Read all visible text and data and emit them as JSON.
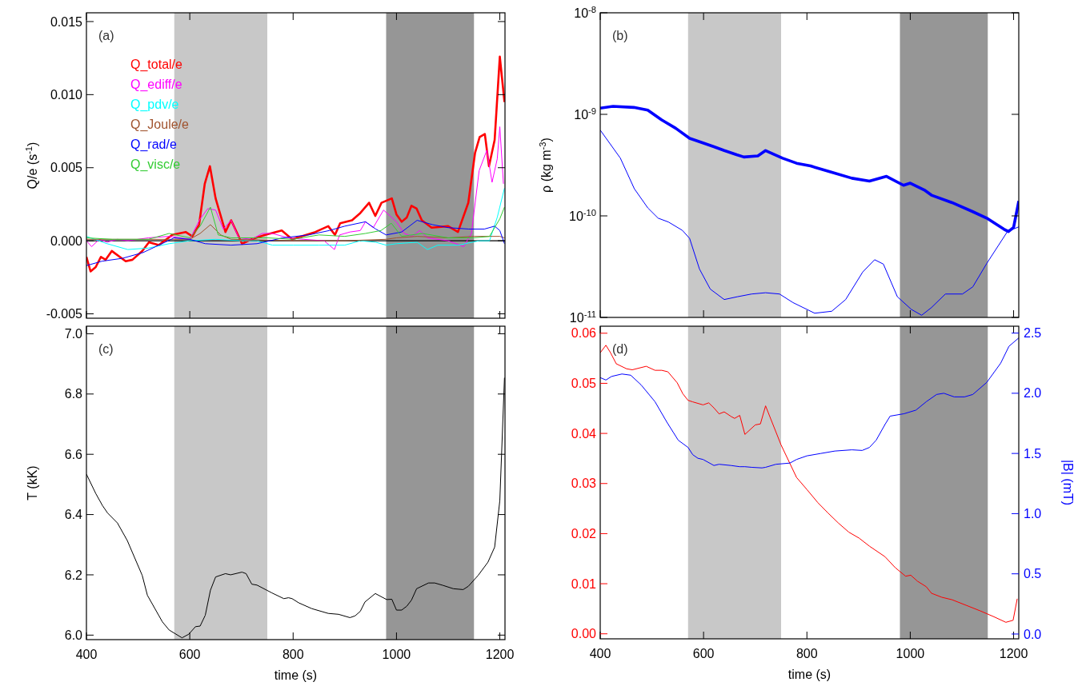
{
  "chart_data": [
    {
      "type": "line",
      "ylabel": "Q/e (s$^{-1}$)",
      "annotations": [
        "(a)"
      ],
      "legend": "top left",
      "tick_labels": "y",
      "xlim": [
        400,
        1210
      ],
      "xticks": [
        400,
        600,
        800,
        1000,
        1200
      ],
      "ylim": [
        -0.0053,
        0.0156
      ],
      "yticks": [
        {
          "value": -0.005,
          "label": "-0.005"
        },
        {
          "value": 0,
          "label": "0.000"
        },
        {
          "value": 0.005,
          "label": "0.005"
        },
        {
          "value": 0.01,
          "label": "0.010"
        },
        {
          "value": 0.015,
          "label": "0.015"
        }
      ],
      "ref_lines": [
        {
          "axis": "y",
          "value": 0,
          "color": "#000000"
        }
      ],
      "bands": [
        {
          "axis": "x",
          "from": 570,
          "to": 750,
          "color": "#c8c8c8"
        },
        {
          "axis": "x",
          "from": 980,
          "to": 1150,
          "color": "#969696"
        }
      ],
      "series": [
        {
          "name": "Q_total/e",
          "color": "#ff0000",
          "x": [
            400,
            408,
            418,
            428,
            437,
            449,
            476,
            489,
            508,
            521,
            540,
            566,
            592,
            605,
            618,
            629,
            639,
            650,
            669,
            680,
            692,
            701,
            720,
            746,
            778,
            798,
            843,
            868,
            881,
            891,
            914,
            930,
            947,
            959,
            971,
            991,
            1000,
            1010,
            1020,
            1029,
            1039,
            1049,
            1068,
            1100,
            1119,
            1139,
            1152,
            1161,
            1171,
            1179,
            1190,
            1200,
            1209
          ],
          "values": [
            -0.0011,
            -0.0021,
            -0.0018,
            -0.0011,
            -0.0013,
            -0.0007,
            -0.0014,
            -0.0013,
            -0.0007,
            -0.0001,
            -0.0003,
            0.0004,
            0.0006,
            0.0003,
            0.0011,
            0.0039,
            0.0051,
            0.0029,
            0.0006,
            0.0014,
            0.0005,
            -0.0002,
            0.0001,
            0.0004,
            0.0007,
            0.0001,
            0.0006,
            0.001,
            0.0004,
            0.0012,
            0.0014,
            0.0019,
            0.0026,
            0.0017,
            0.0026,
            0.0029,
            0.0018,
            0.0013,
            0.0016,
            0.0024,
            0.0022,
            0.0014,
            0.0009,
            0.001,
            0.0006,
            0.0026,
            0.006,
            0.0071,
            0.0073,
            0.0051,
            0.0069,
            0.0126,
            0.0095
          ]
        },
        {
          "name": "Q_ediff/e",
          "color": "#ff00ff",
          "x": [
            400,
            410,
            425,
            440,
            460,
            480,
            520,
            560,
            600,
            620,
            635,
            650,
            665,
            680,
            695,
            720,
            740,
            760,
            790,
            820,
            860,
            880,
            890,
            910,
            930,
            940,
            955,
            975,
            1000,
            1015,
            1030,
            1045,
            1060,
            1100,
            1130,
            1145,
            1160,
            1175,
            1185,
            1195,
            1200,
            1207
          ],
          "values": [
            0,
            -0.0004,
            0.0001,
            -0.0001,
            0.0001,
            0,
            0.0002,
            0.0003,
            0.0001,
            0.0015,
            0.0022,
            0.0021,
            0.0008,
            0.0014,
            0.0002,
            0.0001,
            0.0005,
            0.0005,
            0.0002,
            0.0001,
            0,
            -0.0006,
            0.0004,
            0.0006,
            0.0007,
            0.0013,
            0.0009,
            0.0021,
            0.0013,
            0.0005,
            0.0003,
            0.0007,
            0.0002,
            0,
            -0.0004,
            0.0005,
            0.0048,
            0.0062,
            0.004,
            0.0056,
            0.0078,
            0.0039
          ]
        },
        {
          "name": "Q_pdv/e",
          "color": "#00ffff",
          "x": [
            400,
            440,
            480,
            520,
            560,
            600,
            650,
            700,
            730,
            760,
            800,
            850,
            900,
            930,
            960,
            980,
            1000,
            1040,
            1060,
            1080,
            1120,
            1160,
            1180,
            1195,
            1209
          ],
          "values": [
            0.0003,
            -0.0002,
            -0.0006,
            -0.0005,
            -0.0002,
            0,
            0.0001,
            0,
            0,
            -0.0003,
            -0.0003,
            -0.0003,
            -0.0003,
            0,
            -0.0001,
            -0.0003,
            -0.0002,
            -0.0001,
            -0.0006,
            -0.0003,
            -0.0003,
            0,
            0,
            0.0016,
            0.0036
          ]
        },
        {
          "name": "Q_Joule/e",
          "color": "#a0522d",
          "x": [
            400,
            500,
            600,
            620,
            640,
            660,
            680,
            800,
            900,
            980,
            1000,
            1040,
            1100,
            1150,
            1200,
            1209
          ],
          "values": [
            0.0001,
            0.0001,
            0.0001,
            0.0005,
            0.0011,
            0.0004,
            0.0001,
            0,
            0,
            0.0001,
            0.0002,
            0.0003,
            0.0002,
            0.0003,
            0.0003,
            0.0002
          ]
        },
        {
          "name": "Q_rad/e",
          "color": "#0000ff",
          "x": [
            400,
            430,
            470,
            510,
            540,
            570,
            600,
            630,
            680,
            730,
            780,
            830,
            870,
            900,
            940,
            960,
            980,
            1010,
            1040,
            1070,
            1100,
            1140,
            1170,
            1190,
            1200,
            1209
          ],
          "values": [
            -0.0017,
            -0.0014,
            -0.0012,
            -0.0008,
            -0.0003,
            0.0002,
            0.0001,
            -0.0002,
            -0.0003,
            -0.0002,
            0.0002,
            0.0004,
            0.0007,
            0.001,
            0.0013,
            0.0008,
            0.0004,
            0.0006,
            0.0014,
            0.0011,
            0.0009,
            0.0008,
            0.0008,
            0.001,
            0.0007,
            -0.0002
          ]
        },
        {
          "name": "Q_visc/e",
          "color": "#33cc33",
          "x": [
            400,
            450,
            520,
            560,
            600,
            620,
            640,
            655,
            680,
            750,
            800,
            850,
            900,
            940,
            970,
            990,
            1010,
            1050,
            1100,
            1150,
            1180,
            1200,
            1209
          ],
          "values": [
            0.0002,
            0.0001,
            0.0001,
            0.0005,
            0.0002,
            0.001,
            0.0023,
            0.0004,
            0.0002,
            0.0002,
            0.0001,
            0.0004,
            0.0003,
            0.0005,
            0.0007,
            0.0012,
            0.0003,
            0.0005,
            0.0002,
            0.0002,
            0.0003,
            0.0015,
            0.0023
          ]
        }
      ]
    },
    {
      "type": "line",
      "ylabel": "ρ (kg m$^{-3}$)",
      "annotations": [
        "(b)"
      ],
      "log": "y",
      "tick_labels": "y",
      "xlim": [
        400,
        1210
      ],
      "xticks": [
        400,
        600,
        800,
        1000,
        1200
      ],
      "ylim": [
        1e-11,
        1e-08
      ],
      "yticks": [
        {
          "value": 1e-11,
          "label": "10$^{-11}$"
        },
        {
          "value": 1e-10,
          "label": "10$^{-10}$"
        },
        {
          "value": 1e-09,
          "label": "10$^{-9}$"
        },
        {
          "value": 1e-08,
          "label": "10$^{-8}$"
        }
      ],
      "bands": [
        {
          "axis": "x",
          "from": 570,
          "to": 750,
          "color": "#c8c8c8"
        },
        {
          "axis": "x",
          "from": 980,
          "to": 1150,
          "color": "#969696"
        }
      ],
      "series": [
        {
          "color": "#0000ff",
          "x": [
            400,
            425,
            465,
            492,
            519,
            546,
            573,
            600,
            620,
            640,
            664,
            678,
            705,
            720,
            753,
            780,
            807,
            847,
            887,
            921,
            954,
            987,
            1000,
            1027,
            1041,
            1081,
            1121,
            1148,
            1181,
            1190,
            1200,
            1210
          ],
          "values": [
            1.15e-09,
            1.2e-09,
            1.17e-09,
            1.1e-09,
            8.8e-10,
            7.3e-10,
            5.8e-10,
            5.2e-10,
            4.8e-10,
            4.4e-10,
            4e-10,
            3.8e-10,
            3.9e-10,
            4.4e-10,
            3.7e-10,
            3.3e-10,
            3.1e-10,
            2.7e-10,
            2.35e-10,
            2.2e-10,
            2.45e-10,
            2e-10,
            2.1e-10,
            1.8e-10,
            1.6e-10,
            1.35e-10,
            1.1e-10,
            9.5e-11,
            7.4e-11,
            7e-11,
            7.7e-11,
            1.4e-10
          ]
        },
        {
          "color": "#0000ff",
          "x": [
            400,
            439,
            466,
            492,
            512,
            532,
            559,
            573,
            592,
            613,
            640,
            666,
            693,
            720,
            747,
            773,
            815,
            848,
            875,
            908,
            931,
            948,
            975,
            1002,
            1022,
            1041,
            1068,
            1101,
            1121,
            1148,
            1188,
            1210
          ],
          "values": [
            7e-10,
            3.7e-10,
            1.85e-10,
            1.2e-10,
            9.5e-11,
            8.7e-11,
            7.2e-11,
            6e-11,
            3e-11,
            1.9e-11,
            1.5e-11,
            1.6e-11,
            1.7e-11,
            1.75e-11,
            1.7e-11,
            1.4e-11,
            1.1e-11,
            1.15e-11,
            1.5e-11,
            2.8e-11,
            3.7e-11,
            3.35e-11,
            1.6e-11,
            1.2e-11,
            1.05e-11,
            1.25e-11,
            1.7e-11,
            1.7e-11,
            2e-11,
            3.4e-11,
            7e-11,
            7.8e-11
          ]
        }
      ]
    },
    {
      "type": "line",
      "xlabel": "time (s)",
      "ylabel": "T (kK)",
      "annotations": [
        "(c)"
      ],
      "xlim": [
        400,
        1210
      ],
      "xticks": [
        400,
        600,
        800,
        1000,
        1200
      ],
      "ylim": [
        5.985,
        7.025
      ],
      "yticks": [
        {
          "value": 6,
          "label": "6.0"
        },
        {
          "value": 6.2,
          "label": "6.2"
        },
        {
          "value": 6.4,
          "label": "6.4"
        },
        {
          "value": 6.6,
          "label": "6.6"
        },
        {
          "value": 6.8,
          "label": "6.8"
        },
        {
          "value": 7,
          "label": "7.0"
        }
      ],
      "bands": [
        {
          "axis": "x",
          "from": 570,
          "to": 750,
          "color": "#c8c8c8"
        },
        {
          "axis": "x",
          "from": 980,
          "to": 1150,
          "color": "#969696"
        }
      ],
      "series": [
        {
          "color": "#000000",
          "x": [
            400,
            418,
            431,
            441,
            460,
            479,
            508,
            518,
            547,
            560,
            585,
            598,
            611,
            620,
            630,
            640,
            650,
            669,
            679,
            701,
            709,
            720,
            730,
            759,
            782,
            791,
            798,
            811,
            836,
            868,
            888,
            910,
            920,
            930,
            939,
            959,
            981,
            991,
            1000,
            1010,
            1020,
            1029,
            1039,
            1062,
            1074,
            1090,
            1110,
            1129,
            1139,
            1158,
            1177,
            1190,
            1200,
            1209
          ],
          "values": [
            6.534,
            6.47,
            6.43,
            6.405,
            6.372,
            6.314,
            6.198,
            6.132,
            6.044,
            6.017,
            5.991,
            6.003,
            6.028,
            6.03,
            6.066,
            6.149,
            6.193,
            6.204,
            6.2,
            6.209,
            6.204,
            6.169,
            6.166,
            6.14,
            6.121,
            6.124,
            6.121,
            6.107,
            6.088,
            6.072,
            6.069,
            6.058,
            6.064,
            6.079,
            6.11,
            6.138,
            6.118,
            6.119,
            6.083,
            6.083,
            6.096,
            6.116,
            6.154,
            6.173,
            6.173,
            6.165,
            6.154,
            6.151,
            6.162,
            6.198,
            6.242,
            6.292,
            6.446,
            6.854
          ]
        }
      ]
    },
    {
      "type": "line",
      "xlabel": "time (s)",
      "y2label": "|B| (mT)",
      "annotations": [
        "(d)"
      ],
      "xlim": [
        400,
        1210
      ],
      "xticks": [
        400,
        600,
        800,
        1000,
        1200
      ],
      "ylim": [
        -0.001,
        0.0614
      ],
      "yticks": [
        {
          "value": 0,
          "label": "0.00"
        },
        {
          "value": 0.01,
          "label": "0.01"
        },
        {
          "value": 0.02,
          "label": "0.02"
        },
        {
          "value": 0.03,
          "label": "0.03"
        },
        {
          "value": 0.04,
          "label": "0.04"
        },
        {
          "value": 0.05,
          "label": "0.05"
        },
        {
          "value": 0.06,
          "label": "0.06"
        }
      ],
      "y2lim": [
        -0.04,
        2.557
      ],
      "y2ticks": [
        {
          "value": 0,
          "label": "0.0"
        },
        {
          "value": 0.5,
          "label": "0.5"
        },
        {
          "value": 1,
          "label": "1.0"
        },
        {
          "value": 1.5,
          "label": "1.5"
        },
        {
          "value": 2,
          "label": "2.0"
        },
        {
          "value": 2.5,
          "label": "2.5"
        }
      ],
      "bands": [
        {
          "axis": "x",
          "from": 570,
          "to": 750,
          "color": "#c8c8c8"
        },
        {
          "axis": "x",
          "from": 980,
          "to": 1150,
          "color": "#969696"
        }
      ],
      "series": [
        {
          "color": "#ff0000",
          "x": [
            400,
            411,
            420,
            431,
            451,
            462,
            489,
            506,
            519,
            531,
            549,
            560,
            570,
            579,
            599,
            610,
            620,
            630,
            640,
            653,
            660,
            670,
            680,
            700,
            710,
            720,
            750,
            780,
            800,
            821,
            841,
            861,
            881,
            901,
            921,
            951,
            971,
            991,
            1001,
            1014,
            1031,
            1041,
            1061,
            1081,
            1108,
            1135,
            1162,
            1185,
            1199,
            1207
          ],
          "values": [
            0.0561,
            0.0576,
            0.0561,
            0.0539,
            0.0529,
            0.0527,
            0.0534,
            0.0526,
            0.0526,
            0.0523,
            0.0501,
            0.0479,
            0.0466,
            0.0463,
            0.0457,
            0.0461,
            0.0451,
            0.0439,
            0.0443,
            0.0434,
            0.043,
            0.0436,
            0.0398,
            0.0417,
            0.0419,
            0.0455,
            0.0377,
            0.0312,
            0.0288,
            0.0262,
            0.0241,
            0.0221,
            0.0203,
            0.0191,
            0.0175,
            0.0154,
            0.0132,
            0.0115,
            0.0117,
            0.0105,
            0.0094,
            0.0081,
            0.0073,
            0.0068,
            0.0057,
            0.0046,
            0.0034,
            0.0023,
            0.0027,
            0.007
          ]
        },
        {
          "color": "#0000ff",
          "axis": "y2",
          "x": [
            400,
            411,
            422,
            442,
            459,
            479,
            506,
            529,
            551,
            570,
            579,
            589,
            599,
            620,
            630,
            653,
            670,
            680,
            693,
            713,
            720,
            740,
            767,
            780,
            800,
            827,
            854,
            887,
            907,
            921,
            934,
            951,
            961,
            988,
            1011,
            1031,
            1051,
            1065,
            1085,
            1105,
            1121,
            1148,
            1175,
            1191,
            1210
          ],
          "values": [
            2.13,
            2.11,
            2.14,
            2.16,
            2.15,
            2.07,
            1.93,
            1.76,
            1.61,
            1.55,
            1.49,
            1.46,
            1.45,
            1.4,
            1.41,
            1.4,
            1.39,
            1.39,
            1.385,
            1.38,
            1.385,
            1.41,
            1.42,
            1.45,
            1.48,
            1.5,
            1.52,
            1.53,
            1.525,
            1.55,
            1.61,
            1.74,
            1.81,
            1.83,
            1.86,
            1.93,
            1.99,
            2.0,
            1.97,
            1.97,
            1.99,
            2.09,
            2.25,
            2.39,
            2.46
          ]
        }
      ]
    }
  ]
}
